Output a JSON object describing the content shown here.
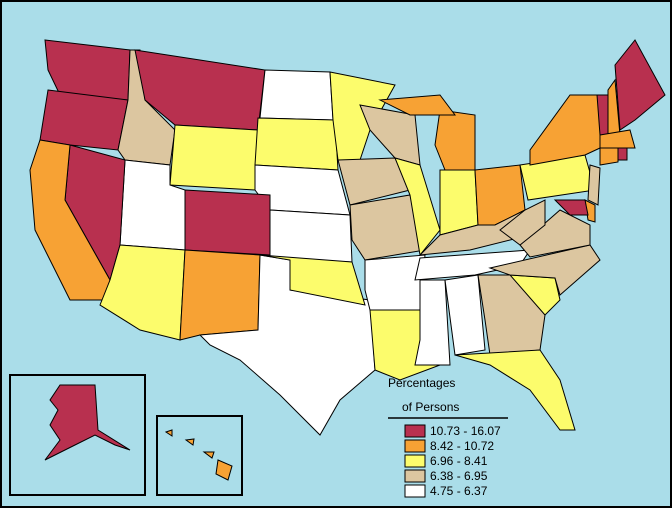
{
  "legend": {
    "title_line1": "Percentages",
    "title_line2": "of Persons",
    "classes": [
      {
        "label": "10.73 - 16.07",
        "color": "#b8304f"
      },
      {
        "label": "8.42 - 10.72",
        "color": "#f7a234"
      },
      {
        "label": "6.96 - 8.41",
        "color": "#fcfc6c"
      },
      {
        "label": "6.38 - 6.95",
        "color": "#dcc6a0"
      },
      {
        "label": "4.75 - 6.37",
        "color": "#ffffff"
      }
    ]
  }
}
